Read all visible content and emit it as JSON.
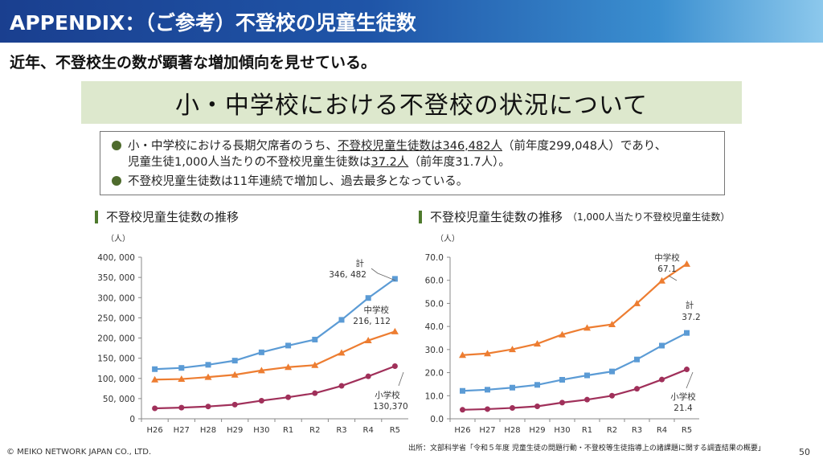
{
  "header": {
    "title": "APPENDIX：（ご参考）不登校の児童生徒数"
  },
  "subtitle": "近年、不登校生の数が顕著な増加傾向を見せている。",
  "banner": "小・中学校における不登校の状況について",
  "summary": {
    "line1_pre": "小・中学校における長期欠席者のうち、",
    "line1_ul": "不登校児童生徒数は346,482人",
    "line1_post": "（前年度299,048人）であり、",
    "line2_pre": "児童生徒1,000人当たりの不登校児童生徒数は",
    "line2_ul": "37.2人",
    "line2_post": "（前年度31.7人）。",
    "line3": "不登校児童生徒数は11年連続で増加し、過去最多となっている。"
  },
  "colors": {
    "total": "#5b9bd5",
    "junior": "#ed7d31",
    "elementary": "#a0305a",
    "accent": "#4e7a2d"
  },
  "chart_data": [
    {
      "type": "line",
      "title": "不登校児童生徒数の推移",
      "note": "",
      "unit": "（人）",
      "categories": [
        "H26",
        "H27",
        "H28",
        "H29",
        "H30",
        "R1",
        "R2",
        "R3",
        "R4",
        "R5"
      ],
      "ylim": [
        0,
        400000
      ],
      "yticks": [
        "0",
        "50, 000",
        "100, 000",
        "150, 000",
        "200, 000",
        "250, 000",
        "300, 000",
        "350, 000",
        "400, 000"
      ],
      "ytick_values": [
        0,
        50000,
        100000,
        150000,
        200000,
        250000,
        300000,
        350000,
        400000
      ],
      "series": [
        {
          "name": "計",
          "color_key": "total",
          "marker": "square",
          "label_value": "346, 482",
          "values": [
            122897,
            125991,
            133683,
            144031,
            164528,
            181272,
            196127,
            244940,
            299048,
            346482
          ]
        },
        {
          "name": "中学校",
          "color_key": "junior",
          "marker": "triangle",
          "label_value": "216, 112",
          "values": [
            97033,
            98408,
            103235,
            108999,
            119687,
            127922,
            132777,
            163442,
            193936,
            216112
          ]
        },
        {
          "name": "小学校",
          "color_key": "elementary",
          "marker": "circle",
          "label_value": "130,370",
          "values": [
            25864,
            27583,
            30448,
            35032,
            44841,
            53350,
            63350,
            81498,
            105112,
            130370
          ]
        }
      ]
    },
    {
      "type": "line",
      "title": "不登校児童生徒数の推移",
      "note": "（1,000人当たり不登校児童生徒数）",
      "unit": "（人）",
      "categories": [
        "H26",
        "H27",
        "H28",
        "H29",
        "H30",
        "R1",
        "R2",
        "R3",
        "R4",
        "R5"
      ],
      "ylim": [
        0,
        70
      ],
      "yticks": [
        "0.0",
        "10.0",
        "20.0",
        "30.0",
        "40.0",
        "50.0",
        "60.0",
        "70.0"
      ],
      "ytick_values": [
        0,
        10,
        20,
        30,
        40,
        50,
        60,
        70
      ],
      "series": [
        {
          "name": "中学校",
          "color_key": "junior",
          "marker": "triangle",
          "label_value": "67.1",
          "values": [
            27.6,
            28.3,
            30.1,
            32.5,
            36.5,
            39.4,
            40.9,
            50.0,
            59.8,
            67.1
          ]
        },
        {
          "name": "計",
          "color_key": "total",
          "marker": "square",
          "label_value": "37.2",
          "values": [
            12.1,
            12.6,
            13.5,
            14.7,
            16.9,
            18.8,
            20.5,
            25.7,
            31.7,
            37.2
          ]
        },
        {
          "name": "小学校",
          "color_key": "elementary",
          "marker": "circle",
          "label_value": "21.4",
          "values": [
            3.9,
            4.2,
            4.7,
            5.4,
            7.0,
            8.3,
            10.0,
            13.0,
            17.0,
            21.4
          ]
        }
      ]
    }
  ],
  "footer": {
    "copyright": "© MEIKO NETWORK JAPAN CO., LTD.",
    "source": "出所：文部科学省「令和５年度 児童生徒の問題行動・不登校等生徒指導上の諸課題に関する調査結果の概要」",
    "page": "50"
  }
}
